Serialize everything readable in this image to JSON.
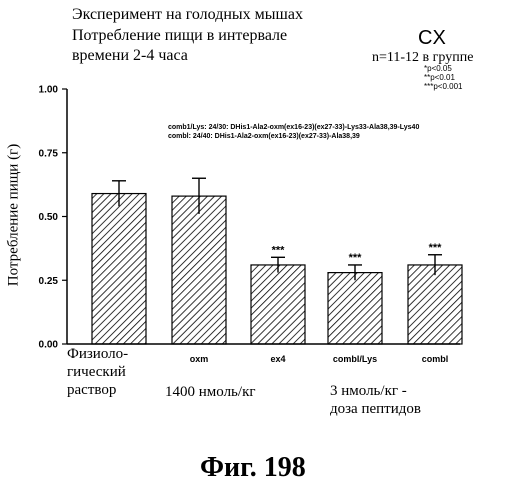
{
  "header": {
    "title_line1": "Эксперимент на голодных мышах",
    "title_line2": "Потребление пищи в интервале",
    "title_line3": "времени 2-4 часа",
    "panel_label": "CX",
    "group_size": "n=11-12 в группе",
    "significance": [
      "*p<0.05",
      "**p<0.01",
      "***p<0.001"
    ]
  },
  "legend_notes": {
    "comb1": "comb1/Lys: 24/30: DHis1-Ala2-oxm(ex16-23)(ex27-33)-Lys33-Ala38,39-Lys40",
    "comb": "combl: 24/40: DHis1-Ala2-oxm(ex16-23)(ex27-33)-Ala38,39"
  },
  "x_notes": {
    "physio": [
      "Физиоло-",
      "гический",
      "раствор"
    ],
    "group1": "1400 нмоль/кг",
    "group2_line1": "3 нмоль/кг -",
    "group2_line2": "доза пептидов"
  },
  "figure_caption": "Фиг. 198",
  "chart_data": {
    "type": "bar",
    "ylabel": "Потребление пищи (г)",
    "ylim": [
      0,
      1.0
    ],
    "yticks": [
      "0.00",
      "0.25",
      "0.50",
      "0.75",
      "1.00"
    ],
    "categories": [
      "",
      "oxm",
      "ex4",
      "combl/Lys",
      "combl"
    ],
    "values": [
      0.59,
      0.58,
      0.31,
      0.28,
      0.31
    ],
    "errors": [
      0.05,
      0.07,
      0.03,
      0.03,
      0.04
    ],
    "annotations": [
      "",
      "",
      "***",
      "***",
      "***"
    ],
    "grid": false,
    "colors": {
      "bar_fill": "#ffffff",
      "hatch": "#000000"
    }
  }
}
